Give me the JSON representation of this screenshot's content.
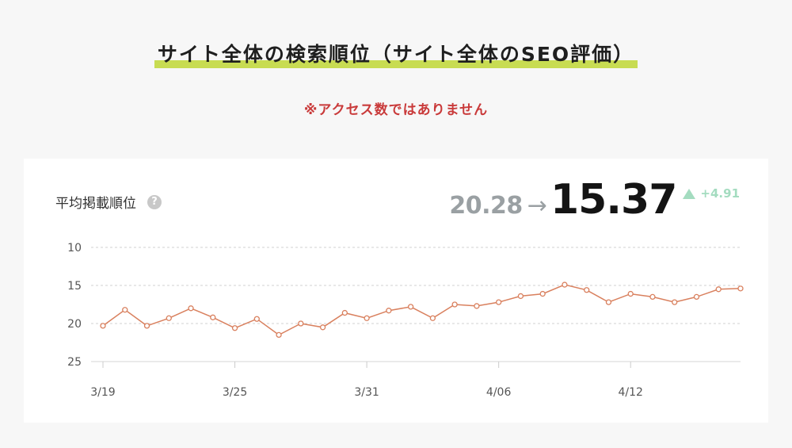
{
  "header": {
    "title": "サイト全体の検索順位（サイト全体のSEO評価）",
    "note": "※アクセス数ではありません"
  },
  "metric": {
    "label": "平均掲載順位",
    "help": "?",
    "previous": "20.28",
    "arrow": "→",
    "current": "15.37",
    "delta": "+4.91"
  },
  "colors": {
    "accent_underline": "#c8dc52",
    "note": "#c93a3a",
    "line": "#d9805e",
    "delta": "#a4dcc0"
  },
  "chart_data": {
    "type": "line",
    "title": "",
    "xlabel": "",
    "ylabel": "",
    "y_inverted": true,
    "ylim": [
      10,
      25
    ],
    "yticks": [
      10,
      15,
      20,
      25
    ],
    "grid": true,
    "x": [
      "3/19",
      "3/20",
      "3/21",
      "3/22",
      "3/23",
      "3/24",
      "3/25",
      "3/26",
      "3/27",
      "3/28",
      "3/29",
      "3/30",
      "3/31",
      "4/01",
      "4/02",
      "4/03",
      "4/04",
      "4/05",
      "4/06",
      "4/07",
      "4/08",
      "4/09",
      "4/10",
      "4/11",
      "4/12",
      "4/13",
      "4/14",
      "4/15",
      "4/16",
      "4/17"
    ],
    "xticks": [
      "3/19",
      "3/25",
      "3/31",
      "4/06",
      "4/12"
    ],
    "series": [
      {
        "values": [
          20.3,
          18.2,
          20.3,
          19.3,
          18.0,
          19.2,
          20.6,
          19.4,
          21.5,
          20.0,
          20.5,
          18.6,
          19.3,
          18.3,
          17.8,
          19.3,
          17.5,
          17.7,
          17.2,
          16.4,
          16.1,
          14.9,
          15.6,
          17.2,
          16.1,
          16.5,
          17.2,
          16.5,
          15.5,
          15.4
        ]
      }
    ]
  }
}
